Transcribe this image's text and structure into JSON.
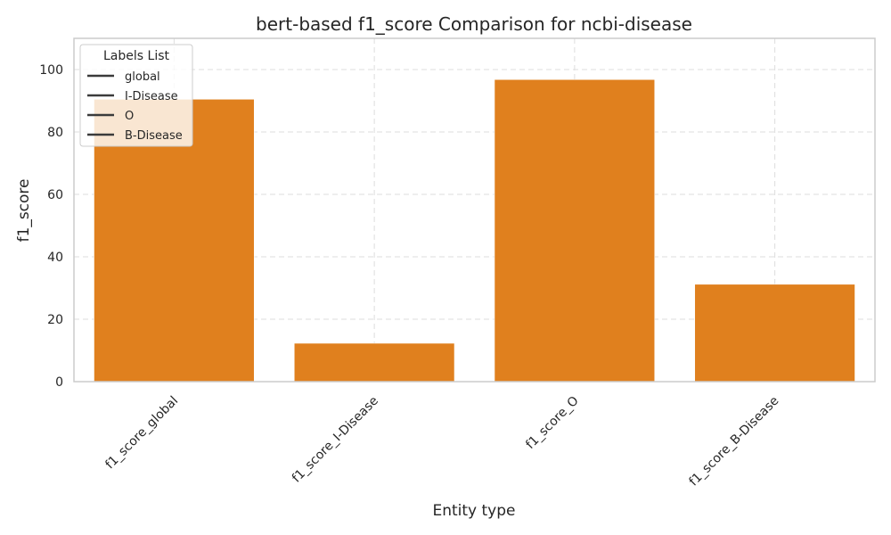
{
  "chart_data": {
    "type": "bar",
    "title": "bert-based  f1_score Comparison for ncbi-disease",
    "xlabel": "Entity type",
    "ylabel": "f1_score",
    "categories": [
      "f1_score_global",
      "f1_score_I-Disease",
      "f1_score_O",
      "f1_score_B-Disease"
    ],
    "values": [
      90.5,
      12.3,
      96.8,
      31.2
    ],
    "ylim": [
      0,
      110
    ],
    "yticks": [
      0,
      20,
      40,
      60,
      80,
      100
    ],
    "grid": true,
    "bar_color": "#e0801e",
    "legend": {
      "title": "Labels List",
      "placement": "top-left",
      "entries": [
        "global",
        "I-Disease",
        "O",
        "B-Disease"
      ]
    }
  }
}
